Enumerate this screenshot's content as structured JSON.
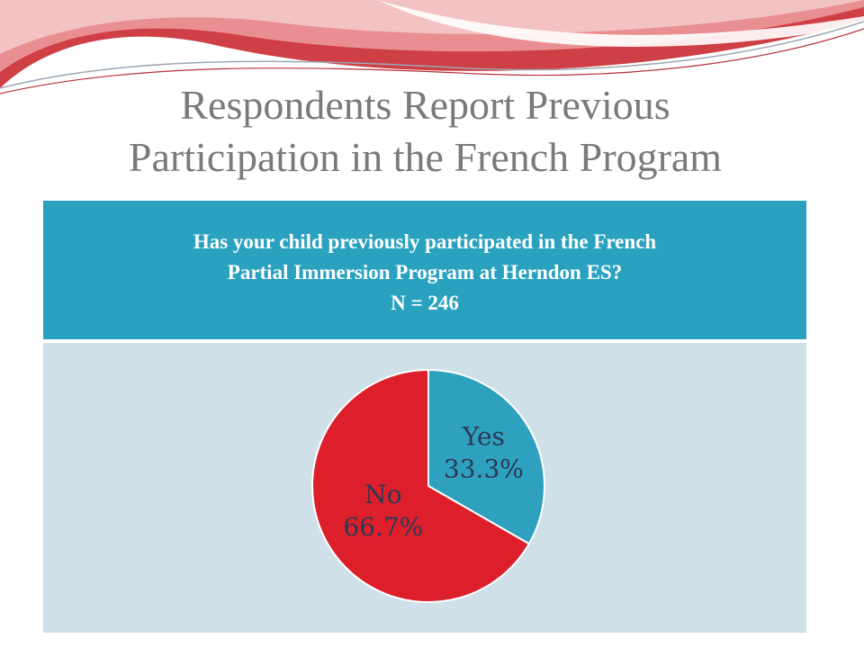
{
  "slide": {
    "title_line1": "Respondents Report Previous",
    "title_line2": "Participation in the French Program"
  },
  "question": {
    "line1": "Has your child previously participated in the French",
    "line2": "Partial Immersion Program at Herndon ES?",
    "line3": "N = 246"
  },
  "colors": {
    "header_teal": "#2aa2bf",
    "panel_bg": "#cfe0e8",
    "yes": "#2ea1be",
    "no": "#dc1f2b",
    "title_gray": "#7a7a7a",
    "ribbon_red": "#d94a4f",
    "ribbon_pink": "#efa1a3"
  },
  "chart_data": {
    "type": "pie",
    "title": "",
    "slices": [
      {
        "label": "Yes",
        "value": 33.3,
        "display": "33.3%",
        "color": "#2ea1be"
      },
      {
        "label": "No",
        "value": 66.7,
        "display": "66.7%",
        "color": "#dc1f2b"
      }
    ],
    "start_angle": "12 o'clock",
    "direction": "clockwise",
    "legend": "none",
    "data_labels": "inside"
  }
}
